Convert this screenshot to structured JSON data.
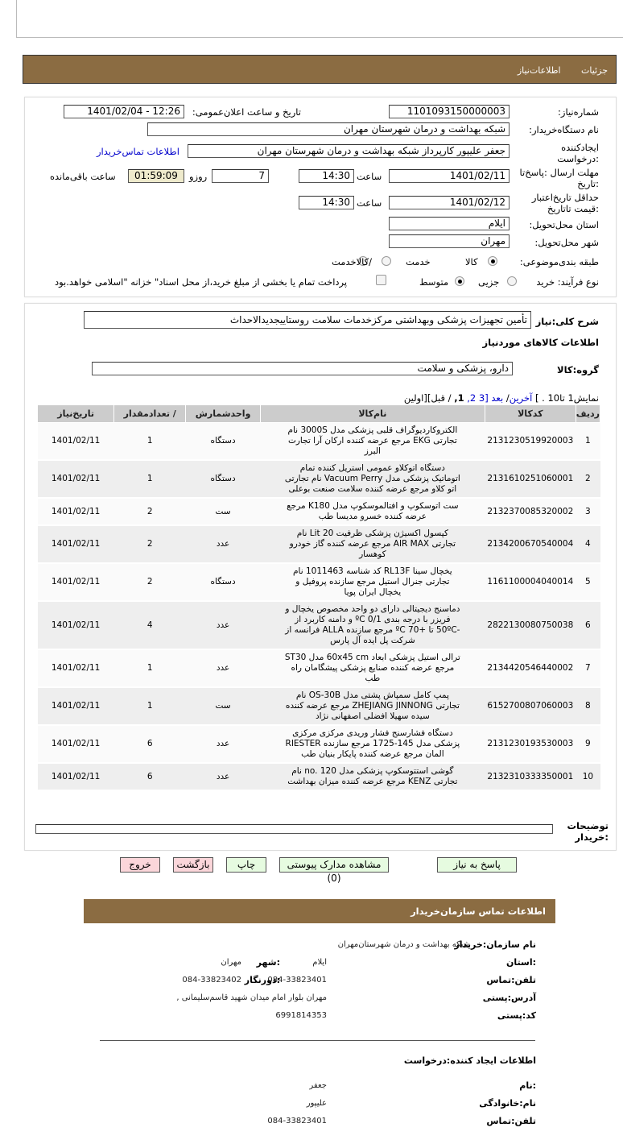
{
  "header": {
    "tab_details": "جزئیات",
    "tab_info": "اطلاعات‌نیاز"
  },
  "form": {
    "need_number_label": "شماره‌نیاز:",
    "need_number": "1101093150000003",
    "announce_label": "تاریخ و ساعت اعلان‌عمومی:",
    "announce_value": "1401/02/04 - 12:26",
    "buyer_org_label": "نام دستگاه‌خریدار:",
    "buyer_org": "شبکه بهداشت و درمان شهرستان مهران",
    "creator_label_1": "ایجادکننده",
    "creator_label_2": ":درخواست",
    "creator": "جعفر علیپور کارپرداز شبکه بهداشت و درمان شهرستان مهران",
    "contact_link": "اطلاعات تماس‌خریدار",
    "deadline_label_1": "مهلت ارسال :پاسخ‌تا",
    "deadline_label_2": ":تاریخ",
    "deadline_date": "1401/02/11",
    "hour_label": "ساعت",
    "deadline_time": "14:30",
    "days": "7",
    "days_label": "روزو",
    "remaining": "01:59:09",
    "remaining_label": "ساعت باقی‌مانده",
    "validity_label_1": "حداقل تاریخ‌اعتبار",
    "validity_label_2": ":قیمت تا‌تاریخ",
    "validity_date": "1401/02/12",
    "validity_time": "14:30",
    "province_label": "استان محل‌تحویل:",
    "province": "ایلام",
    "city_label": "شهر محل‌تحویل:",
    "city": "مهران",
    "category_label": "طبقه بندی‌موضوعی:",
    "cat_options": [
      "کالا",
      "خدمت",
      "/کالاخدمت"
    ],
    "cat_selected": "کالا",
    "process_label": "نوع فرآیند: خرید",
    "process_options": [
      "جزیی",
      "متوسط"
    ],
    "process_selected": "متوسط",
    "payment_note": "پرداخت تمام یا بخشی از مبلغ خرید،از محل اسناد\" خزانه \"اسلامی خواهد.بود",
    "payment_checked": false
  },
  "summary": {
    "label": "شرح کلی:نیاز",
    "value": "تأمین تجهیزات پزشکی وبهداشتی مرکزخدمات سلامت روستاییجدیدالاحداث",
    "goods_title": "اطلاعات کالاهای موردنیاز",
    "group_label": "گروه:کالا",
    "group_value": "دارو، پزشکی و سلامت"
  },
  "pager": {
    "show": "نمایش1  تا10 . ]",
    "last": "آخرین",
    "next": "بعد",
    "p3": "[3",
    "p2": "2,",
    "p1": "1,",
    "prev_first": " / قبل][اولین"
  },
  "table": {
    "headers": [
      "ردیف",
      "کدکالا",
      "نام‌کالا",
      "واحدشمارش",
      "/ تعدادمقدار",
      "تاریخ‌نیاز"
    ],
    "rows": [
      [
        "1",
        "2131230519920003",
        "الکتروکاردیوگراف قلبی پزشکی مدل 3000S نام تجارتی EKG مرجع عرضه کننده ارکان آرا تجارت البرز",
        "دستگاه",
        "1",
        "1401/02/11"
      ],
      [
        "2",
        "2131610251060001",
        "دستگاه اتوکلاو عمومی استریل کننده تمام اتوماتیک پزشکی مدل Vacuum Perry نام تجارتی اتو کلاو مرجع عرضه کننده سلامت صنعت بوعلی",
        "دستگاه",
        "1",
        "1401/02/11"
      ],
      [
        "3",
        "2132370085320002",
        "ست اتوسکوپ و افتالموسکوپ مدل K180 مرجع عرضه کننده خسرو مدیسا طب",
        "ست",
        "2",
        "1401/02/11"
      ],
      [
        "4",
        "2134200670540004",
        "کپسول اکسیژن پزشکی ظرفیت 20 Lit نام تجارتی AIR MAX مرجع عرضه کننده گاز خودرو کوهسار",
        "عدد",
        "2",
        "1401/02/11"
      ],
      [
        "5",
        "1161100004040014",
        "یخچال سینا RL13F کد شناسه 1011463 نام تجارتی جنرال استیل مرجع سازنده پروفیل و یخچال ایران پویا",
        "دستگاه",
        "2",
        "1401/02/11"
      ],
      [
        "6",
        "2822130080750038",
        "دماسنج دیجیتالی دارای دو واحد مخصوص یخچال و فریزر با درجه بندی 0/1 ºC و دامنه کاربرد از -50ºC تا +70 ºC مرجع سازنده ALLA فرانسه از شرکت پل ایده آل پارس",
        "عدد",
        "4",
        "1401/02/11"
      ],
      [
        "7",
        "2134420546440002",
        "ترالی استیل پزشکی ابعاد 60x45 cm مدل ST30 مرجع عرضه کننده صنایع پزشکی پیشگامان راه طب",
        "عدد",
        "1",
        "1401/02/11"
      ],
      [
        "8",
        "6152700807060003",
        "پمپ کامل سمپاش پشتی مدل OS-30B نام تجارتی ZHEJIANG JINNONG مرجع عرضه کننده سیده سهیلا افضلی اصفهانی نژاد",
        "ست",
        "1",
        "1401/02/11"
      ],
      [
        "9",
        "2131230193530003",
        "دستگاه فشارسنج فشار وریدی مرکزی مرکزی پزشکی مدل 145-1725 مرجع سازنده RIESTER المان مرجع عرضه کننده پایکار بنیان طب",
        "عدد",
        "6",
        "1401/02/11"
      ],
      [
        "10",
        "2132310333350001",
        "گوشی استتوسکوپ پزشکی مدل no. 120 نام تجارتی KENZ مرجع عرضه کننده میزان بهداشت",
        "عدد",
        "6",
        "1401/02/11"
      ]
    ]
  },
  "notes": {
    "label_1": "توضیحات",
    "label_2": ":خریدار",
    "value": ""
  },
  "buttons": {
    "reply": "پاسخ به نیاز",
    "docs": "مشاهده مدارک پیوستی (0)",
    "print": "چاپ",
    "back": "بازگشت",
    "exit": "خروج"
  },
  "contact": {
    "title": "اطلاعات  تماس سازمان‌خریدار",
    "org_label": "نام سازمان:خریدار",
    "org": "شبکه بهداشت و درمان شهرستان‌مهران",
    "province_label": ":استان",
    "province": "ایلام",
    "city_label": ":شهر",
    "city": "مهران",
    "phone_label": "تلفن:تماس",
    "phone": "084-33823401",
    "fax_label": ":دورنگار",
    "fax": "084-33823402",
    "address_label": "آدرس:پستی",
    "address": "مهران بلوار امام میدان شهید قاسم‌سلیمانی ,",
    "postal_label": "کد:پستی",
    "postal": "6991814353",
    "creator_title": "اطلاعات ایجاد کننده:درخواست",
    "name_label": ":نام",
    "name": "جعفر",
    "family_label": "نام:خانوادگی",
    "family": "علیپور",
    "cphone_label": "تلفن:تماس",
    "cphone": "084-33823401"
  },
  "colors": {
    "bar": "#8b6c42",
    "timer_bg": "#eeeacc",
    "button_green": "#e6fbe0",
    "button_red": "#fbd6da",
    "table_header": "#cccccc"
  }
}
